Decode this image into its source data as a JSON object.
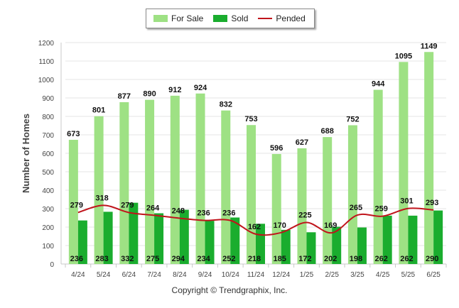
{
  "chart_data": {
    "type": "bar",
    "ylabel": "Number of Homes",
    "ylim": [
      0,
      1200
    ],
    "yticks": [
      0,
      100,
      200,
      300,
      400,
      500,
      600,
      700,
      800,
      900,
      1000,
      1100,
      1200
    ],
    "grid": true,
    "legend_position": "top",
    "categories": [
      "4/24",
      "5/24",
      "6/24",
      "7/24",
      "8/24",
      "9/24",
      "10/24",
      "11/24",
      "12/24",
      "1/25",
      "2/25",
      "3/25",
      "4/25",
      "5/25",
      "6/25"
    ],
    "series": [
      {
        "name": "For Sale",
        "kind": "bar",
        "color": "#9ee184",
        "values": [
          673,
          801,
          877,
          890,
          912,
          924,
          832,
          753,
          596,
          627,
          688,
          752,
          944,
          1095,
          1149
        ]
      },
      {
        "name": "Sold",
        "kind": "bar",
        "color": "#1aad2e",
        "values": [
          236,
          283,
          332,
          275,
          294,
          234,
          252,
          218,
          185,
          172,
          202,
          198,
          262,
          262,
          290
        ]
      },
      {
        "name": "Pended",
        "kind": "line",
        "color": "#c0141b",
        "values": [
          279,
          318,
          279,
          264,
          248,
          236,
          236,
          162,
          170,
          225,
          169,
          265,
          259,
          301,
          293
        ]
      }
    ]
  },
  "legend": {
    "for_sale": "For Sale",
    "sold": "Sold",
    "pended": "Pended"
  },
  "footer": {
    "copyright": "Copyright © Trendgraphix, Inc."
  }
}
